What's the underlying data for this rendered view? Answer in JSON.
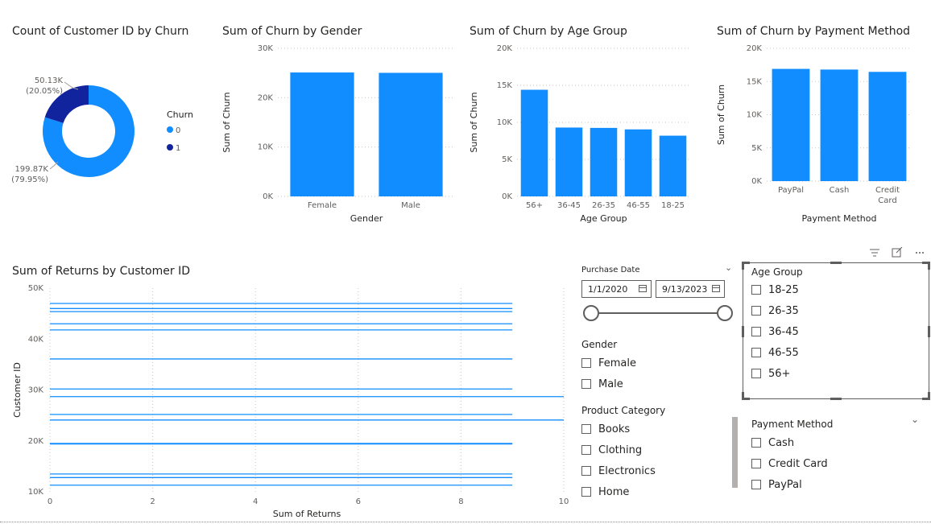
{
  "colors": {
    "primary": "#118DFF",
    "dark": "#12239E",
    "line": "#118DFF"
  },
  "donut": {
    "title": "Count of Customer ID by Churn",
    "legend_title": "Churn",
    "labels": [
      {
        "value": "50.13K",
        "pct": "(20.05%)"
      },
      {
        "value": "199.87K",
        "pct": "(79.95%)"
      }
    ],
    "legend": [
      "0",
      "1"
    ],
    "chart_data": {
      "type": "pie",
      "categories": [
        "0",
        "1"
      ],
      "values": [
        199870,
        50130
      ]
    }
  },
  "gender": {
    "title": "Sum of Churn by Gender",
    "xlabel": "Gender",
    "ylabel": "Sum of Churn",
    "yticks": [
      "0K",
      "10K",
      "20K",
      "30K"
    ],
    "chart_data": {
      "type": "bar",
      "categories": [
        "Female",
        "Male"
      ],
      "values": [
        25100,
        25030
      ],
      "ylim": [
        0,
        30000
      ]
    }
  },
  "age": {
    "title": "Sum of Churn by Age Group",
    "xlabel": "Age Group",
    "ylabel": "Sum of Churn",
    "yticks": [
      "0K",
      "5K",
      "10K",
      "15K",
      "20K"
    ],
    "chart_data": {
      "type": "bar",
      "categories": [
        "56+",
        "36-45",
        "26-35",
        "46-55",
        "18-25"
      ],
      "values": [
        14400,
        9300,
        9250,
        9050,
        8200
      ],
      "ylim": [
        0,
        20000
      ]
    }
  },
  "payment": {
    "title": "Sum of Churn by Payment Method",
    "xlabel": "Payment Method",
    "ylabel": "Sum of Churn",
    "yticks": [
      "0K",
      "5K",
      "10K",
      "15K",
      "20K"
    ],
    "category_lines": [
      [
        "PayPal"
      ],
      [
        "Cash"
      ],
      [
        "Credit",
        "Card"
      ]
    ],
    "chart_data": {
      "type": "bar",
      "categories": [
        "PayPal",
        "Cash",
        "Credit Card"
      ],
      "values": [
        16900,
        16800,
        16450
      ],
      "ylim": [
        0,
        20000
      ]
    }
  },
  "returns": {
    "title": "Sum of Returns by Customer ID",
    "xlabel": "Sum of Returns",
    "ylabel": "Customer ID",
    "yticks": [
      "10K",
      "20K",
      "30K",
      "40K",
      "50K"
    ],
    "xticks": [
      "0",
      "2",
      "4",
      "6",
      "8",
      "10"
    ],
    "chart_data": {
      "type": "bar",
      "orientation": "horizontal",
      "xlim": [
        0,
        10
      ],
      "ylim": [
        10000,
        50000
      ],
      "points": [
        {
          "y": 47000,
          "x": 9
        },
        {
          "y": 46000,
          "x": 9
        },
        {
          "y": 45400,
          "x": 9
        },
        {
          "y": 43000,
          "x": 9
        },
        {
          "y": 41800,
          "x": 9
        },
        {
          "y": 36100,
          "x": 9
        },
        {
          "y": 30200,
          "x": 9
        },
        {
          "y": 28700,
          "x": 10
        },
        {
          "y": 25200,
          "x": 9
        },
        {
          "y": 24100,
          "x": 10
        },
        {
          "y": 19500,
          "x": 9
        },
        {
          "y": 19400,
          "x": 9
        },
        {
          "y": 13500,
          "x": 9
        },
        {
          "y": 12800,
          "x": 9
        },
        {
          "y": 11300,
          "x": 9
        }
      ]
    }
  },
  "date_slicer": {
    "title": "Purchase Date",
    "start": "1/1/2020",
    "end": "9/13/2023"
  },
  "gender_slicer": {
    "title": "Gender",
    "items": [
      "Female",
      "Male"
    ]
  },
  "product_slicer": {
    "title": "Product Category",
    "items": [
      "Books",
      "Clothing",
      "Electronics",
      "Home"
    ]
  },
  "age_slicer": {
    "title": "Age Group",
    "items": [
      "18-25",
      "26-35",
      "36-45",
      "46-55",
      "56+"
    ]
  },
  "payment_slicer": {
    "title": "Payment Method",
    "items": [
      "Cash",
      "Credit Card",
      "PayPal"
    ]
  },
  "visual_header": {
    "icons": [
      "filter-icon",
      "focus-mode-icon",
      "more-options-icon"
    ]
  }
}
